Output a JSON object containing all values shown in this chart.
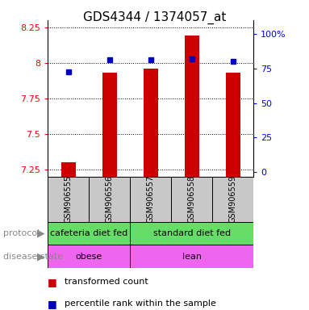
{
  "title": "GDS4344 / 1374057_at",
  "samples": [
    "GSM906555",
    "GSM906556",
    "GSM906557",
    "GSM906558",
    "GSM906559"
  ],
  "red_values": [
    7.3,
    7.93,
    7.96,
    8.19,
    7.93
  ],
  "blue_values": [
    7.935,
    8.02,
    8.02,
    8.025,
    8.01
  ],
  "ylim_left": [
    7.2,
    8.3
  ],
  "yticks_left": [
    7.25,
    7.5,
    7.75,
    8.0,
    8.25
  ],
  "ytick_labels_left": [
    "7.25",
    "7.5",
    "7.75",
    "8",
    "8.25"
  ],
  "ylim_right": [
    -3.33,
    110
  ],
  "yticks_right": [
    0,
    25,
    50,
    75,
    100
  ],
  "ytick_labels_right": [
    "0",
    "25",
    "50",
    "75",
    "100%"
  ],
  "protocol_labels": [
    "cafeteria diet fed",
    "standard diet fed"
  ],
  "disease_labels": [
    "obese",
    "lean"
  ],
  "protocol_color": "#66DD66",
  "disease_color": "#EE66EE",
  "bar_color": "#CC0000",
  "dot_color": "#0000BB",
  "sample_box_color": "#C8C8C8",
  "bar_width": 0.35,
  "title_fontsize": 11,
  "tick_fontsize": 8,
  "label_fontsize": 8,
  "sample_fontsize": 7,
  "legend_fontsize": 8,
  "row_label_fontsize": 8,
  "arrow_color": "#999999"
}
